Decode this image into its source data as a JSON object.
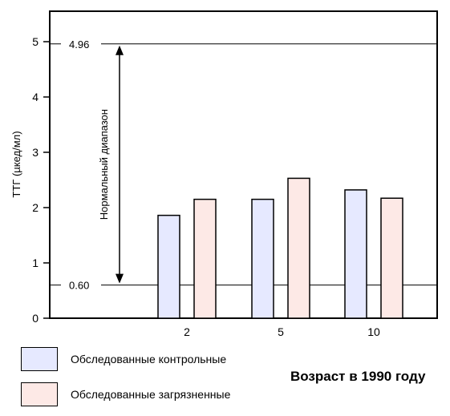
{
  "chart_data": {
    "type": "bar",
    "ylabel": "ТТГ (µкед/мл)",
    "xlabel": "Возраст в 1990 году",
    "ylim": [
      0,
      5.5
    ],
    "y_ticks": [
      "0",
      "1",
      "2",
      "3",
      "4",
      "5"
    ],
    "categories": [
      "2",
      "5",
      "10"
    ],
    "series": [
      {
        "name": "Обследованные контрольные",
        "color": "#e6e9ff",
        "values": [
          1.86,
          2.15,
          2.32
        ]
      },
      {
        "name": "Обследованные загрязненные",
        "color": "#fde9e6",
        "values": [
          2.15,
          2.53,
          2.17
        ]
      }
    ],
    "reference_lines": [
      {
        "value": 4.96,
        "label": "4.96"
      },
      {
        "value": 0.6,
        "label": "0.60"
      }
    ],
    "range_annotation": "Нормальный диапазон",
    "grid": false,
    "legend_position": "bottom-left"
  }
}
